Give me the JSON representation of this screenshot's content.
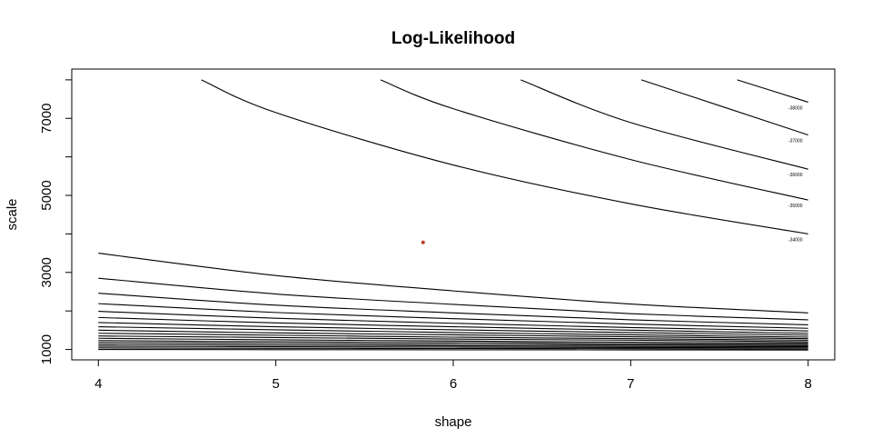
{
  "chart_data": {
    "type": "contour",
    "title": "Log-Likelihood",
    "xlabel": "shape",
    "ylabel": "scale",
    "xlim": [
      3.85,
      8.15
    ],
    "ylim": [
      730,
      8280
    ],
    "x_ticks": [
      4,
      5,
      6,
      7,
      8
    ],
    "y_ticks": [
      1000,
      3000,
      5000,
      7000
    ],
    "x_tick_labels": [
      "4",
      "5",
      "6",
      "7",
      "8"
    ],
    "y_tick_labels": [
      "1000",
      "3000",
      "5000",
      "7000"
    ],
    "grid": false,
    "maximum_point": {
      "x": 5.83,
      "y": 3780,
      "color": "#c0392b"
    },
    "contour_levels": [
      {
        "label": "-38000",
        "points": [
          [
            7.6,
            8000
          ],
          [
            8.0,
            7420
          ]
        ]
      },
      {
        "label": "-37000",
        "points": [
          [
            7.06,
            8000
          ],
          [
            8.0,
            6570
          ]
        ]
      },
      {
        "label": "-36000",
        "points": [
          [
            6.38,
            8000
          ],
          [
            7.0,
            6890
          ],
          [
            8.0,
            5680
          ]
        ]
      },
      {
        "label": "-35000",
        "points": [
          [
            5.59,
            8000
          ],
          [
            6.0,
            7250
          ],
          [
            7.0,
            5930
          ],
          [
            8.0,
            4880
          ]
        ]
      },
      {
        "label": "-34000",
        "points": [
          [
            4.58,
            8000
          ],
          [
            5.0,
            7150
          ],
          [
            6.0,
            5790
          ],
          [
            7.0,
            4780
          ],
          [
            8.0,
            4000
          ]
        ]
      },
      {
        "label": "",
        "points": [
          [
            4.0,
            3500
          ],
          [
            5.0,
            2920
          ],
          [
            6.0,
            2520
          ],
          [
            7.0,
            2180
          ],
          [
            8.0,
            1950
          ]
        ]
      },
      {
        "label": "",
        "points": [
          [
            4.0,
            2850
          ],
          [
            5.0,
            2440
          ],
          [
            6.0,
            2170
          ],
          [
            7.0,
            1930
          ],
          [
            8.0,
            1770
          ]
        ]
      },
      {
        "label": "",
        "points": [
          [
            4.0,
            2460
          ],
          [
            5.0,
            2150
          ],
          [
            6.0,
            1950
          ],
          [
            7.0,
            1770
          ],
          [
            8.0,
            1640
          ]
        ]
      },
      {
        "label": "",
        "points": [
          [
            4.0,
            2190
          ],
          [
            5.0,
            1960
          ],
          [
            6.0,
            1800
          ],
          [
            7.0,
            1660
          ],
          [
            8.0,
            1550
          ]
        ]
      },
      {
        "label": "",
        "points": [
          [
            4.0,
            1990
          ],
          [
            5.0,
            1810
          ],
          [
            6.0,
            1680
          ],
          [
            7.0,
            1570
          ],
          [
            8.0,
            1480
          ]
        ]
      },
      {
        "label": "",
        "points": [
          [
            4.0,
            1830
          ],
          [
            5.0,
            1690
          ],
          [
            6.0,
            1590
          ],
          [
            7.0,
            1500
          ],
          [
            8.0,
            1420
          ]
        ]
      },
      {
        "label": "",
        "points": [
          [
            4.0,
            1700
          ],
          [
            5.0,
            1590
          ],
          [
            6.0,
            1510
          ],
          [
            7.0,
            1440
          ],
          [
            8.0,
            1370
          ]
        ]
      },
      {
        "label": "",
        "points": [
          [
            4.0,
            1590
          ],
          [
            5.0,
            1510
          ],
          [
            6.0,
            1440
          ],
          [
            7.0,
            1380
          ],
          [
            8.0,
            1320
          ]
        ]
      },
      {
        "label": "",
        "points": [
          [
            4.0,
            1500
          ],
          [
            5.0,
            1430
          ],
          [
            6.0,
            1380
          ],
          [
            7.0,
            1330
          ],
          [
            8.0,
            1280
          ]
        ]
      },
      {
        "label": "",
        "points": [
          [
            4.0,
            1420
          ],
          [
            5.0,
            1370
          ],
          [
            6.0,
            1320
          ],
          [
            7.0,
            1280
          ],
          [
            8.0,
            1240
          ]
        ]
      },
      {
        "label": "",
        "points": [
          [
            4.0,
            1350
          ],
          [
            5.0,
            1310
          ],
          [
            6.0,
            1270
          ],
          [
            7.0,
            1240
          ],
          [
            8.0,
            1200
          ]
        ]
      },
      {
        "label": "",
        "points": [
          [
            4.0,
            1290
          ],
          [
            5.0,
            1250
          ],
          [
            6.0,
            1220
          ],
          [
            7.0,
            1190
          ],
          [
            8.0,
            1165
          ]
        ]
      },
      {
        "label": "",
        "points": [
          [
            4.0,
            1230
          ],
          [
            5.0,
            1200
          ],
          [
            6.0,
            1180
          ],
          [
            7.0,
            1150
          ],
          [
            8.0,
            1130
          ]
        ]
      },
      {
        "label": "",
        "points": [
          [
            4.0,
            1180
          ],
          [
            5.0,
            1155
          ],
          [
            6.0,
            1135
          ],
          [
            7.0,
            1115
          ],
          [
            8.0,
            1100
          ]
        ]
      },
      {
        "label": "",
        "points": [
          [
            4.0,
            1130
          ],
          [
            5.0,
            1110
          ],
          [
            6.0,
            1095
          ],
          [
            7.0,
            1080
          ],
          [
            8.0,
            1070
          ]
        ]
      },
      {
        "label": "",
        "points": [
          [
            4.0,
            1085
          ],
          [
            5.0,
            1070
          ],
          [
            6.0,
            1060
          ],
          [
            7.0,
            1050
          ],
          [
            8.0,
            1040
          ]
        ]
      },
      {
        "label": "",
        "points": [
          [
            4.0,
            1040
          ],
          [
            5.0,
            1030
          ],
          [
            6.0,
            1025
          ],
          [
            7.0,
            1020
          ],
          [
            8.0,
            1010
          ]
        ]
      },
      {
        "label": "",
        "points": [
          [
            4.0,
            1000
          ],
          [
            5.0,
            995
          ],
          [
            6.0,
            992
          ],
          [
            7.0,
            988
          ],
          [
            8.0,
            985
          ]
        ]
      }
    ]
  }
}
